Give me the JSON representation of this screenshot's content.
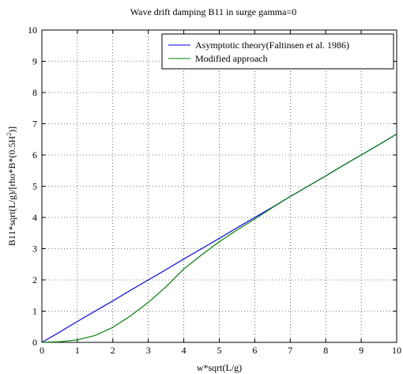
{
  "chart_data": {
    "type": "line",
    "title": "Wave drift damping B11 in surge gamma=0",
    "xlabel": "w*sqrt(L/g)",
    "ylabel_main": "B11*sqrt(L/g)/[rho*B*(0.5H",
    "ylabel_sup": "2",
    "ylabel_end": ")]",
    "xlim": [
      0,
      10
    ],
    "ylim": [
      0,
      10
    ],
    "xticks": [
      "0",
      "1",
      "2",
      "3",
      "4",
      "5",
      "6",
      "7",
      "8",
      "9",
      "10"
    ],
    "yticks": [
      "0",
      "1",
      "2",
      "3",
      "4",
      "5",
      "6",
      "7",
      "8",
      "9",
      "10"
    ],
    "grid": true,
    "legend_position": "top-right",
    "series": [
      {
        "name": "Asymptotic theory(Faltinsen et al. 1986)",
        "color": "#0000ff",
        "x": [
          0,
          0.5,
          1,
          1.5,
          2,
          2.5,
          3,
          3.5,
          4,
          4.5,
          5,
          5.5,
          6,
          6.5,
          7,
          7.5,
          8,
          8.5,
          9,
          9.5,
          10
        ],
        "y": [
          0,
          0.33,
          0.67,
          1.0,
          1.33,
          1.67,
          2.0,
          2.33,
          2.67,
          3.0,
          3.33,
          3.67,
          4.0,
          4.33,
          4.67,
          5.0,
          5.33,
          5.67,
          6.0,
          6.33,
          6.67
        ]
      },
      {
        "name": "Modified approach",
        "color": "#008000",
        "x": [
          0,
          0.5,
          1,
          1.5,
          2,
          2.5,
          3,
          3.5,
          4,
          4.5,
          5,
          5.5,
          6,
          6.5,
          7,
          7.5,
          8,
          8.5,
          9,
          9.5,
          10
        ],
        "y": [
          0,
          0.02,
          0.08,
          0.22,
          0.48,
          0.85,
          1.28,
          1.78,
          2.35,
          2.8,
          3.22,
          3.6,
          3.95,
          4.32,
          4.67,
          5.0,
          5.33,
          5.67,
          6.0,
          6.33,
          6.67
        ]
      }
    ]
  }
}
